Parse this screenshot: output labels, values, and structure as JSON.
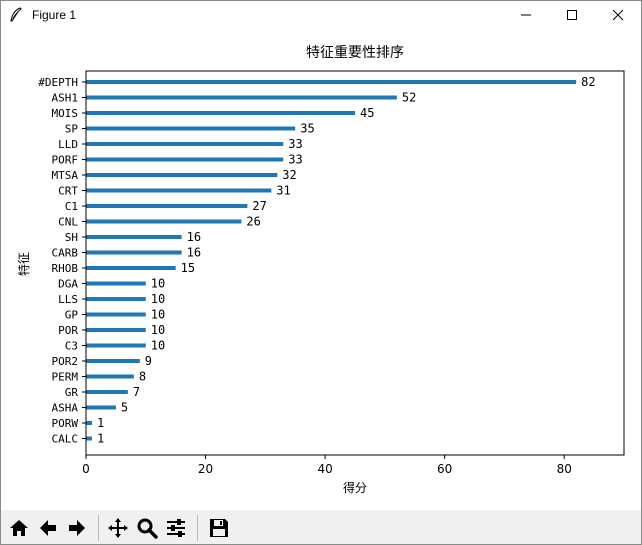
{
  "window": {
    "title": "Figure 1"
  },
  "toolbar": {
    "buttons": [
      {
        "name": "home-icon"
      },
      {
        "name": "back-icon"
      },
      {
        "name": "forward-icon"
      },
      {
        "name": "pan-icon"
      },
      {
        "name": "zoom-icon"
      },
      {
        "name": "configure-subplots-icon"
      },
      {
        "name": "save-icon"
      }
    ]
  },
  "chart_data": {
    "type": "bar",
    "orientation": "horizontal",
    "title": "特征重要性排序",
    "xlabel": "得分",
    "ylabel": "特征",
    "categories": [
      "#DEPTH",
      "ASH1",
      "MOIS",
      "SP",
      "LLD",
      "PORF",
      "MTSA",
      "CRT",
      "C1",
      "CNL",
      "SH",
      "CARB",
      "RHOB",
      "DGA",
      "LLS",
      "GP",
      "POR",
      "C3",
      "POR2",
      "PERM",
      "GR",
      "ASHA",
      "PORW",
      "CALC"
    ],
    "values": [
      82,
      52,
      45,
      35,
      33,
      33,
      32,
      31,
      27,
      26,
      16,
      16,
      15,
      10,
      10,
      10,
      10,
      10,
      9,
      8,
      7,
      5,
      1,
      1
    ],
    "xlim": [
      0,
      90
    ],
    "xticks": [
      0,
      20,
      40,
      60,
      80
    ],
    "bar_color": "#1f77b4",
    "grid": false,
    "data_labels": true
  }
}
